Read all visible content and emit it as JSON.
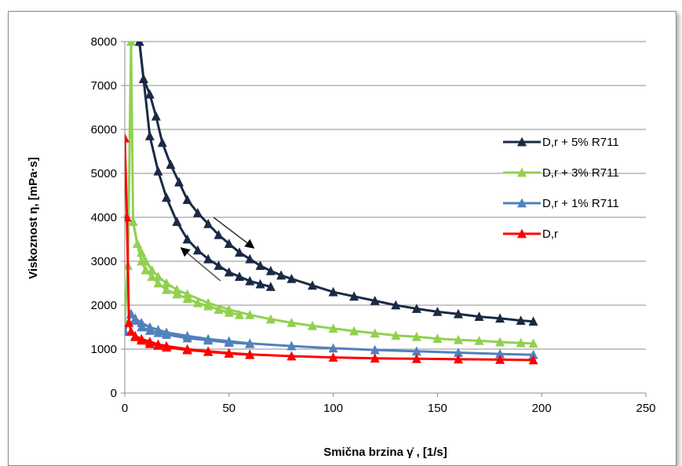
{
  "chart_data": {
    "type": "line",
    "title": "",
    "xlabel": "Smična brzina γ̇ , [1/s]",
    "ylabel": "Viskoznost η, [mPa·s]",
    "xlim": [
      0,
      250
    ],
    "ylim": [
      0,
      8000
    ],
    "x_ticks": [
      "0",
      "50",
      "100",
      "150",
      "200",
      "250"
    ],
    "y_ticks": [
      "0",
      "1000",
      "2000",
      "3000",
      "4000",
      "5000",
      "6000",
      "7000",
      "8000"
    ],
    "grid": "horizontal",
    "legend_position": "right",
    "series": [
      {
        "name": "D,r + 5% R711",
        "color": "#1a2a45",
        "up": [
          [
            7,
            8000
          ],
          [
            9,
            7150
          ],
          [
            12,
            5850
          ],
          [
            16,
            5050
          ],
          [
            20,
            4450
          ],
          [
            25,
            3900
          ],
          [
            30,
            3500
          ],
          [
            35,
            3250
          ],
          [
            40,
            3050
          ],
          [
            45,
            2900
          ],
          [
            50,
            2750
          ],
          [
            55,
            2650
          ],
          [
            60,
            2550
          ],
          [
            65,
            2480
          ],
          [
            70,
            2420
          ]
        ],
        "down": [
          [
            7,
            8000
          ],
          [
            9,
            7150
          ],
          [
            12,
            6800
          ],
          [
            15,
            6300
          ],
          [
            18,
            5700
          ],
          [
            22,
            5200
          ],
          [
            26,
            4800
          ],
          [
            30,
            4400
          ],
          [
            35,
            4100
          ],
          [
            40,
            3850
          ],
          [
            45,
            3600
          ],
          [
            50,
            3400
          ],
          [
            55,
            3200
          ],
          [
            60,
            3050
          ],
          [
            65,
            2900
          ],
          [
            70,
            2780
          ],
          [
            75,
            2680
          ],
          [
            80,
            2600
          ],
          [
            90,
            2450
          ],
          [
            100,
            2300
          ],
          [
            110,
            2200
          ],
          [
            120,
            2100
          ],
          [
            130,
            2000
          ],
          [
            140,
            1920
          ],
          [
            150,
            1850
          ],
          [
            160,
            1800
          ],
          [
            170,
            1740
          ],
          [
            180,
            1700
          ],
          [
            190,
            1650
          ],
          [
            196,
            1630
          ]
        ]
      },
      {
        "name": "D,r + 3% R711",
        "color": "#92d050",
        "up": [
          [
            0,
            1650
          ],
          [
            1.5,
            2900
          ],
          [
            3,
            8000
          ],
          [
            4,
            3900
          ],
          [
            6,
            3400
          ],
          [
            8,
            3000
          ],
          [
            10,
            2800
          ],
          [
            13,
            2650
          ],
          [
            16,
            2500
          ],
          [
            20,
            2350
          ],
          [
            25,
            2250
          ],
          [
            30,
            2150
          ],
          [
            35,
            2050
          ],
          [
            40,
            1980
          ],
          [
            45,
            1900
          ],
          [
            50,
            1830
          ],
          [
            55,
            1780
          ]
        ],
        "down": [
          [
            4,
            3900
          ],
          [
            6,
            3400
          ],
          [
            8,
            3200
          ],
          [
            10,
            3000
          ],
          [
            13,
            2800
          ],
          [
            16,
            2650
          ],
          [
            20,
            2500
          ],
          [
            25,
            2350
          ],
          [
            30,
            2250
          ],
          [
            40,
            2050
          ],
          [
            50,
            1900
          ],
          [
            60,
            1780
          ],
          [
            70,
            1680
          ],
          [
            80,
            1600
          ],
          [
            90,
            1530
          ],
          [
            100,
            1470
          ],
          [
            110,
            1410
          ],
          [
            120,
            1360
          ],
          [
            130,
            1310
          ],
          [
            140,
            1280
          ],
          [
            150,
            1240
          ],
          [
            160,
            1210
          ],
          [
            170,
            1190
          ],
          [
            180,
            1160
          ],
          [
            190,
            1140
          ],
          [
            196,
            1130
          ]
        ]
      },
      {
        "name": "D,r + 1% R711",
        "color": "#4f81bd",
        "up": [
          [
            0,
            1400
          ],
          [
            3,
            1800
          ],
          [
            5,
            1650
          ],
          [
            8,
            1500
          ],
          [
            12,
            1420
          ],
          [
            16,
            1370
          ],
          [
            20,
            1330
          ],
          [
            30,
            1250
          ],
          [
            40,
            1200
          ],
          [
            50,
            1150
          ],
          [
            60,
            1120
          ]
        ],
        "down": [
          [
            3,
            1800
          ],
          [
            5,
            1700
          ],
          [
            8,
            1600
          ],
          [
            12,
            1500
          ],
          [
            16,
            1440
          ],
          [
            20,
            1380
          ],
          [
            30,
            1300
          ],
          [
            40,
            1230
          ],
          [
            50,
            1180
          ],
          [
            60,
            1130
          ],
          [
            80,
            1070
          ],
          [
            100,
            1020
          ],
          [
            120,
            980
          ],
          [
            140,
            950
          ],
          [
            160,
            920
          ],
          [
            180,
            890
          ],
          [
            196,
            870
          ]
        ]
      },
      {
        "name": "D,r",
        "color": "#ff0000",
        "up": [
          [
            0,
            5800
          ],
          [
            1,
            4000
          ],
          [
            2,
            1600
          ],
          [
            3,
            1400
          ],
          [
            5,
            1280
          ],
          [
            8,
            1200
          ],
          [
            12,
            1120
          ],
          [
            16,
            1080
          ],
          [
            20,
            1040
          ],
          [
            30,
            980
          ],
          [
            40,
            940
          ],
          [
            50,
            900
          ],
          [
            60,
            870
          ]
        ],
        "down": [
          [
            3,
            1400
          ],
          [
            5,
            1300
          ],
          [
            8,
            1230
          ],
          [
            12,
            1170
          ],
          [
            16,
            1110
          ],
          [
            20,
            1070
          ],
          [
            30,
            1000
          ],
          [
            40,
            950
          ],
          [
            50,
            910
          ],
          [
            60,
            880
          ],
          [
            80,
            840
          ],
          [
            100,
            810
          ],
          [
            120,
            790
          ],
          [
            140,
            780
          ],
          [
            160,
            770
          ],
          [
            180,
            760
          ],
          [
            196,
            750
          ]
        ]
      }
    ]
  }
}
